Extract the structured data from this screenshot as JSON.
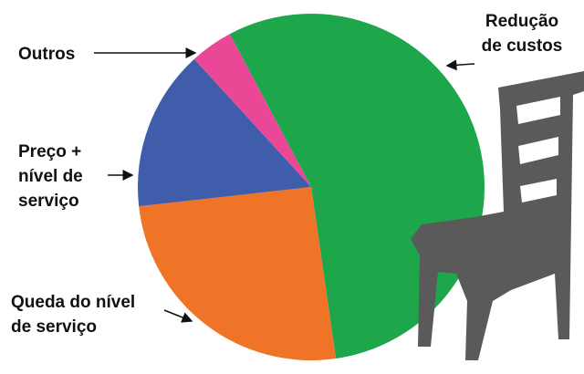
{
  "chart_data": {
    "type": "pie",
    "categories": [
      "Redução\nde custos",
      "Queda do nível\nde serviço",
      "Preço +\nnível de\nserviço",
      "Outros"
    ],
    "values": [
      55.5,
      25.5,
      15,
      4
    ],
    "colors": [
      "#1ea64b",
      "#f07428",
      "#3f5dab",
      "#ea4897"
    ]
  }
}
